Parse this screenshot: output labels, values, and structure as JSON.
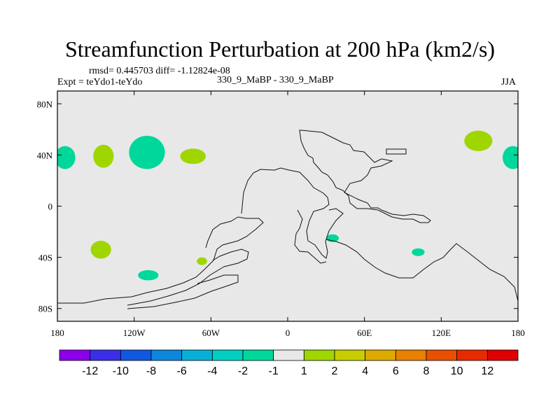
{
  "header": {
    "title": "Streamfunction Perturbation at 200 hPa (km2/s)",
    "rmsd": "rmsd= 0.445703 diff= -1.12824e-08",
    "expt": "Expt = teYdo1-teYdo",
    "case": "330_9_MaBP - 330_9_MaBP",
    "season": "JJA"
  },
  "chart_data": {
    "type": "heatmap",
    "projection": "lat-lon",
    "title": "Streamfunction Perturbation at 200 hPa (km2/s)",
    "xlim": [
      -180,
      180
    ],
    "ylim": [
      -90,
      90
    ],
    "x_ticks": [
      {
        "value": -180,
        "label": "180"
      },
      {
        "value": -120,
        "label": "120W"
      },
      {
        "value": -60,
        "label": "60W"
      },
      {
        "value": 0,
        "label": "0"
      },
      {
        "value": 60,
        "label": "60E"
      },
      {
        "value": 120,
        "label": "120E"
      },
      {
        "value": 180,
        "label": "180"
      }
    ],
    "y_ticks": [
      {
        "value": 80,
        "label": "80N"
      },
      {
        "value": 40,
        "label": "40N"
      },
      {
        "value": 0,
        "label": "0"
      },
      {
        "value": -40,
        "label": "40S"
      },
      {
        "value": -80,
        "label": "80S"
      }
    ],
    "anomalies": [
      {
        "lon": -174,
        "lat": 38,
        "rlon": 8,
        "rlat": 9,
        "level": "-1 to -2",
        "color": "#00d79a"
      },
      {
        "lon": 176,
        "lat": 38,
        "rlon": 8,
        "rlat": 9,
        "level": "-1 to -2",
        "color": "#00d79a"
      },
      {
        "lon": -144,
        "lat": 39,
        "rlon": 8,
        "rlat": 9,
        "level": "1 to 2",
        "color": "#9fd600"
      },
      {
        "lon": -110,
        "lat": 42,
        "rlon": 14,
        "rlat": 13,
        "level": "-1 to -2",
        "color": "#00d79a"
      },
      {
        "lon": -74,
        "lat": 39,
        "rlon": 10,
        "rlat": 6,
        "level": "1 to 2",
        "color": "#9fd600"
      },
      {
        "lon": 149,
        "lat": 51,
        "rlon": 11,
        "rlat": 8,
        "level": "1 to 2",
        "color": "#9fd600"
      },
      {
        "lon": -146,
        "lat": -34,
        "rlon": 8,
        "rlat": 7,
        "level": "1 to 2",
        "color": "#9fd600"
      },
      {
        "lon": -109,
        "lat": -54,
        "rlon": 8,
        "rlat": 4,
        "level": "-1 to -2",
        "color": "#00d79a"
      },
      {
        "lon": -67,
        "lat": -43,
        "rlon": 4,
        "rlat": 3,
        "level": "1 to 2",
        "color": "#9fd600"
      },
      {
        "lon": 35,
        "lat": -25,
        "rlon": 5,
        "rlat": 3,
        "level": "-1 to -2",
        "color": "#00d79a"
      },
      {
        "lon": 102,
        "lat": -36,
        "rlon": 5,
        "rlat": 3,
        "level": "-1 to -2",
        "color": "#00d79a"
      }
    ],
    "colorbar": {
      "labels": [
        "-12",
        "-10",
        "-8",
        "-6",
        "-4",
        "-2",
        "-1",
        "1",
        "2",
        "4",
        "6",
        "8",
        "10",
        "12"
      ],
      "colors": [
        "#8b00e8",
        "#3a2fe6",
        "#1058e0",
        "#0d86dc",
        "#08b0d8",
        "#00cfc2",
        "#00d79a",
        "#e8e8e8",
        "#9fd600",
        "#c9cc00",
        "#ddaa00",
        "#e88000",
        "#e85000",
        "#e82a00",
        "#e00000"
      ]
    }
  }
}
